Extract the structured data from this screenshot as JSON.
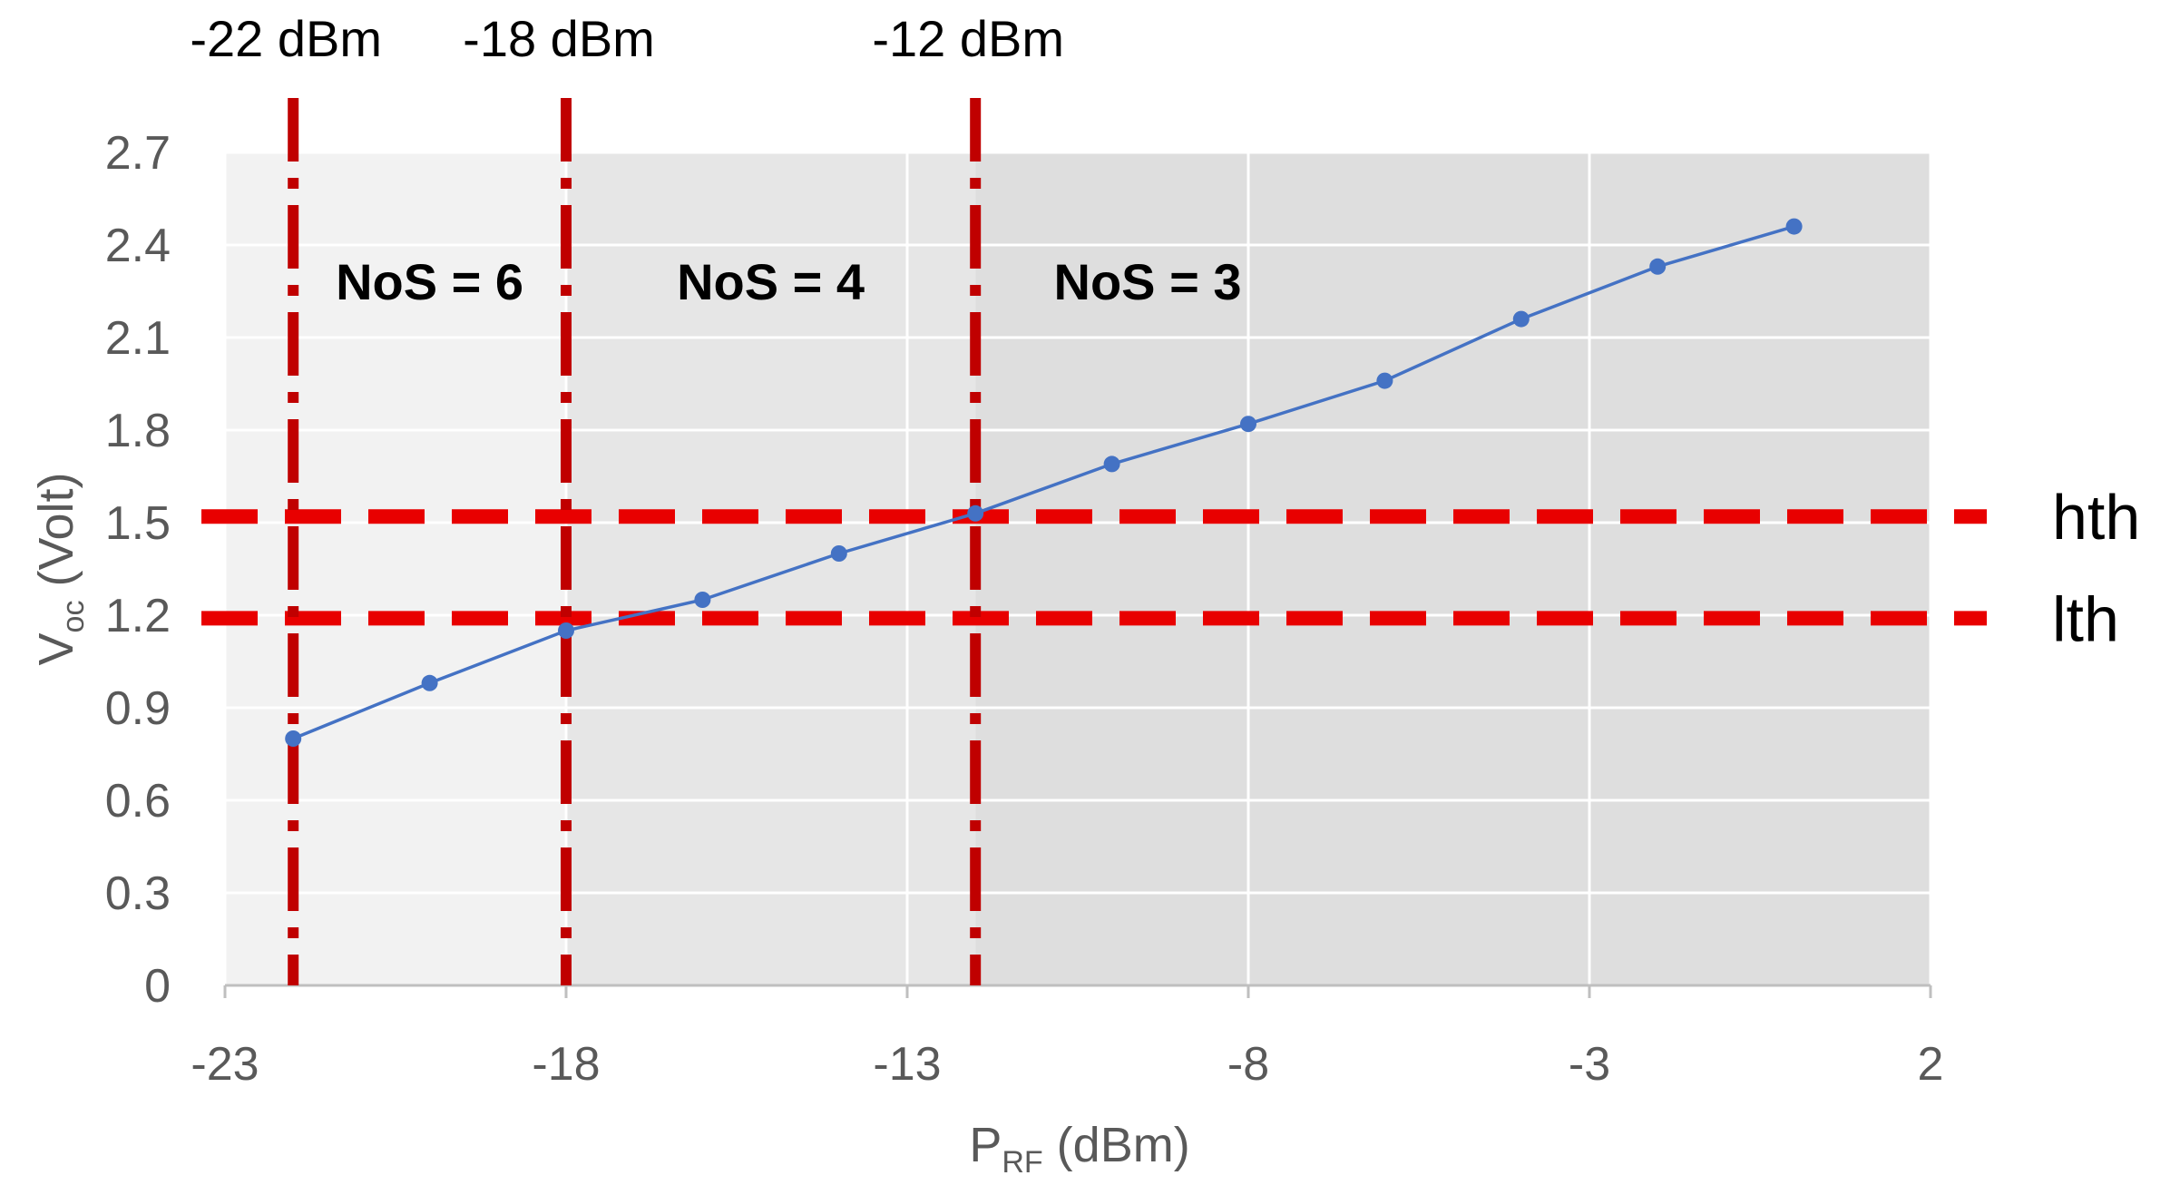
{
  "chart_data": {
    "type": "line",
    "xlabel": "P",
    "xlabel_sub": "RF",
    "xlabel_unit": " (dBm)",
    "ylabel": "V",
    "ylabel_sub": "oc",
    "ylabel_unit": " (Volt)",
    "xlim": [
      -23,
      2
    ],
    "ylim": [
      0,
      2.7
    ],
    "x_ticks": [
      -23,
      -18,
      -13,
      -8,
      -3,
      2
    ],
    "y_ticks": [
      0,
      0.3,
      0.6,
      0.9,
      1.2,
      1.5,
      1.8,
      2.1,
      2.4,
      2.7
    ],
    "grid": true,
    "series": [
      {
        "x": [
          -22,
          -20,
          -18,
          -16,
          -14,
          -12,
          -10,
          -8,
          -6,
          -4,
          -2,
          0
        ],
        "y": [
          0.8,
          0.98,
          1.15,
          1.25,
          1.4,
          1.53,
          1.69,
          1.82,
          1.96,
          2.16,
          2.33,
          2.46
        ],
        "color": "#4472C4"
      }
    ],
    "zones": [
      {
        "x0": -23,
        "x1": -18,
        "color": "#F2F2F2",
        "label": "NoS = 6"
      },
      {
        "x0": -18,
        "x1": -12,
        "color": "#E6E6E6",
        "label": "NoS = 4"
      },
      {
        "x0": -12,
        "x1": 2,
        "color": "#DEDEDE",
        "label": "NoS = 3"
      }
    ],
    "vertical_markers": [
      {
        "x": -22,
        "label": "-22 dBm"
      },
      {
        "x": -18,
        "label": "-18 dBm"
      },
      {
        "x": -12,
        "label": "-12 dBm"
      }
    ],
    "horizontal_thresholds": [
      {
        "y": 1.52,
        "label": "hth"
      },
      {
        "y": 1.19,
        "label": "lth"
      }
    ],
    "threshold_color": "#E80000",
    "marker_color": "#C00000"
  }
}
